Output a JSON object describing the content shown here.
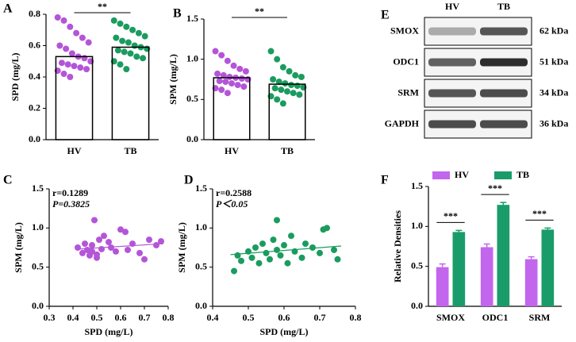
{
  "chart_data": [
    {
      "type": "bar",
      "label": "A",
      "ylabel": "SPD (mg/L)",
      "categories": [
        "HV",
        "TB"
      ],
      "values": [
        0.53,
        0.59
      ],
      "colors": [
        "#b455d8",
        "#1a9c5e"
      ],
      "points": [
        [
          0.78,
          0.76,
          0.72,
          0.68,
          0.65,
          0.62,
          0.6,
          0.58,
          0.55,
          0.53,
          0.52,
          0.5,
          0.49,
          0.48,
          0.47,
          0.46,
          0.45,
          0.44,
          0.42,
          0.4
        ],
        [
          0.76,
          0.74,
          0.72,
          0.7,
          0.68,
          0.66,
          0.65,
          0.63,
          0.62,
          0.6,
          0.59,
          0.58,
          0.57,
          0.56,
          0.55,
          0.53,
          0.52,
          0.5,
          0.48,
          0.45
        ]
      ],
      "significance": "**",
      "ylim": [
        0,
        0.8
      ],
      "yticks": [
        {
          "value": 0,
          "label": "0.0"
        },
        0.2,
        0.4,
        0.6,
        0.8
      ]
    },
    {
      "type": "bar",
      "label": "B",
      "ylabel": "SPM (mg/L)",
      "categories": [
        "HV",
        "TB"
      ],
      "values": [
        0.77,
        0.69
      ],
      "colors": [
        "#b455d8",
        "#1a9c5e"
      ],
      "points": [
        [
          1.1,
          1.05,
          0.98,
          0.92,
          0.88,
          0.85,
          0.82,
          0.8,
          0.78,
          0.77,
          0.76,
          0.75,
          0.73,
          0.72,
          0.7,
          0.68,
          0.66,
          0.64,
          0.62,
          0.58
        ],
        [
          1.1,
          1.0,
          0.9,
          0.85,
          0.8,
          0.78,
          0.75,
          0.72,
          0.7,
          0.68,
          0.67,
          0.65,
          0.64,
          0.62,
          0.6,
          0.58,
          0.56,
          0.54,
          0.5,
          0.45
        ]
      ],
      "significance": "**",
      "ylim": [
        0,
        1.5
      ],
      "yticks": [
        {
          "value": 0,
          "label": "0.0"
        },
        0.5,
        {
          "value": 1,
          "label": "1.0"
        },
        1.5
      ]
    },
    {
      "type": "scatter",
      "label": "C",
      "xlabel": "SPD (mg/L)",
      "ylabel": "SPM (mg/L)",
      "color": "#b455d8",
      "annotations": [
        "r=0.1289",
        "P=0.3825"
      ],
      "x": [
        0.42,
        0.44,
        0.45,
        0.46,
        0.47,
        0.48,
        0.48,
        0.49,
        0.5,
        0.51,
        0.52,
        0.53,
        0.55,
        0.56,
        0.58,
        0.6,
        0.62,
        0.63,
        0.65,
        0.68,
        0.7,
        0.72,
        0.75,
        0.77,
        0.5
      ],
      "y": [
        0.75,
        0.68,
        0.8,
        0.72,
        0.65,
        0.78,
        0.7,
        1.1,
        0.62,
        0.85,
        0.73,
        0.9,
        0.82,
        0.75,
        0.7,
        0.98,
        0.95,
        0.72,
        0.8,
        0.68,
        0.6,
        0.85,
        0.78,
        0.83,
        0.66
      ],
      "trend": {
        "x": [
          0.42,
          0.78
        ],
        "y": [
          0.73,
          0.8
        ]
      },
      "xlim": [
        0.3,
        0.8
      ],
      "xticks": [
        0.3,
        0.4,
        0.5,
        0.6,
        0.7,
        0.8
      ],
      "ylim": [
        0,
        1.5
      ],
      "yticks": [
        {
          "value": 0,
          "label": "0.0"
        },
        0.5,
        {
          "value": 1,
          "label": "1.0"
        },
        1.5
      ]
    },
    {
      "type": "scatter",
      "label": "D",
      "xlabel": "SPD (mg/L)",
      "ylabel": "SPM (mg/L)",
      "color": "#1a9c5e",
      "annotations": [
        "r=0.2588",
        "P＜0.05"
      ],
      "x": [
        0.46,
        0.47,
        0.48,
        0.5,
        0.51,
        0.52,
        0.53,
        0.54,
        0.55,
        0.56,
        0.57,
        0.58,
        0.58,
        0.59,
        0.6,
        0.61,
        0.62,
        0.63,
        0.65,
        0.66,
        0.68,
        0.7,
        0.71,
        0.72,
        0.74,
        0.75
      ],
      "y": [
        0.45,
        0.65,
        0.58,
        0.7,
        0.62,
        0.75,
        0.55,
        0.8,
        0.68,
        0.6,
        0.85,
        1.1,
        0.72,
        0.65,
        0.78,
        0.55,
        0.9,
        0.7,
        0.62,
        0.8,
        0.75,
        0.68,
        0.98,
        1.0,
        0.72,
        0.6
      ],
      "trend": {
        "x": [
          0.45,
          0.76
        ],
        "y": [
          0.66,
          0.77
        ]
      },
      "xlim": [
        0.4,
        0.8
      ],
      "xticks": [
        0.4,
        0.5,
        0.6,
        0.7,
        0.8
      ],
      "ylim": [
        0,
        1.5
      ],
      "yticks": [
        {
          "value": 0,
          "label": "0.0"
        },
        0.5,
        {
          "value": 1,
          "label": "1.0"
        },
        1.5
      ]
    },
    {
      "type": "grouped_bar",
      "label": "F",
      "ylabel": "Relative Densities",
      "categories": [
        "SMOX",
        "ODC1",
        "SRM"
      ],
      "series": [
        {
          "name": "HV",
          "color": "#c266ee",
          "values": [
            0.49,
            0.74,
            0.59
          ],
          "errors": [
            0.04,
            0.04,
            0.03
          ]
        },
        {
          "name": "TB",
          "color": "#1a9c6a",
          "values": [
            0.93,
            1.27,
            0.96
          ],
          "errors": [
            0.02,
            0.03,
            0.02
          ]
        }
      ],
      "significance": [
        "***",
        "***",
        "***"
      ],
      "ylim": [
        0,
        1.5
      ],
      "yticks": [
        {
          "value": 0,
          "label": "0.0"
        },
        0.5,
        {
          "value": 1,
          "label": "1.0"
        },
        1.5
      ]
    }
  ],
  "blot": {
    "label": "E",
    "columns": [
      "HV",
      "TB"
    ],
    "rows": [
      {
        "protein": "SMOX",
        "size": "62 kDa"
      },
      {
        "protein": "ODC1",
        "size": "51 kDa"
      },
      {
        "protein": "SRM",
        "size": "34 kDa"
      },
      {
        "protein": "GAPDH",
        "size": "36 kDa"
      }
    ]
  }
}
